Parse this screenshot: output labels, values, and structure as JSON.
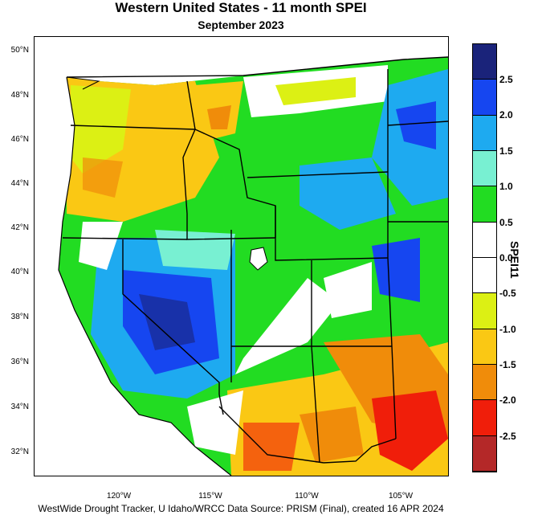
{
  "title": "Western United States - 11 month SPEI",
  "subtitle": "September 2023",
  "footer": "WestWide Drought Tracker, U Idaho/WRCC Data Source: PRISM (Final), created 16 APR 2024",
  "colorbar": {
    "title": "SPEI11",
    "classes": [
      {
        "color": "#1a237a"
      },
      {
        "color": "#1646f0"
      },
      {
        "color": "#1eaaf0"
      },
      {
        "color": "#78f0d2"
      },
      {
        "color": "#22dc22"
      },
      {
        "color": "#ffffff"
      },
      {
        "color": "#ffffff"
      },
      {
        "color": "#dcf014"
      },
      {
        "color": "#fac814"
      },
      {
        "color": "#f08c0a"
      },
      {
        "color": "#f01e0a"
      },
      {
        "color": "#b42828"
      }
    ],
    "ticks": [
      "2.5",
      "2.0",
      "1.5",
      "1.0",
      "0.5",
      "0.0",
      "-0.5",
      "-1.0",
      "-1.5",
      "-2.0",
      "-2.5"
    ]
  },
  "lat_labels": [
    "50°N",
    "48°N",
    "46°N",
    "44°N",
    "42°N",
    "40°N",
    "38°N",
    "36°N",
    "34°N",
    "32°N"
  ],
  "lon_labels": [
    "120°W",
    "115°W",
    "110°W",
    "105°W"
  ]
}
